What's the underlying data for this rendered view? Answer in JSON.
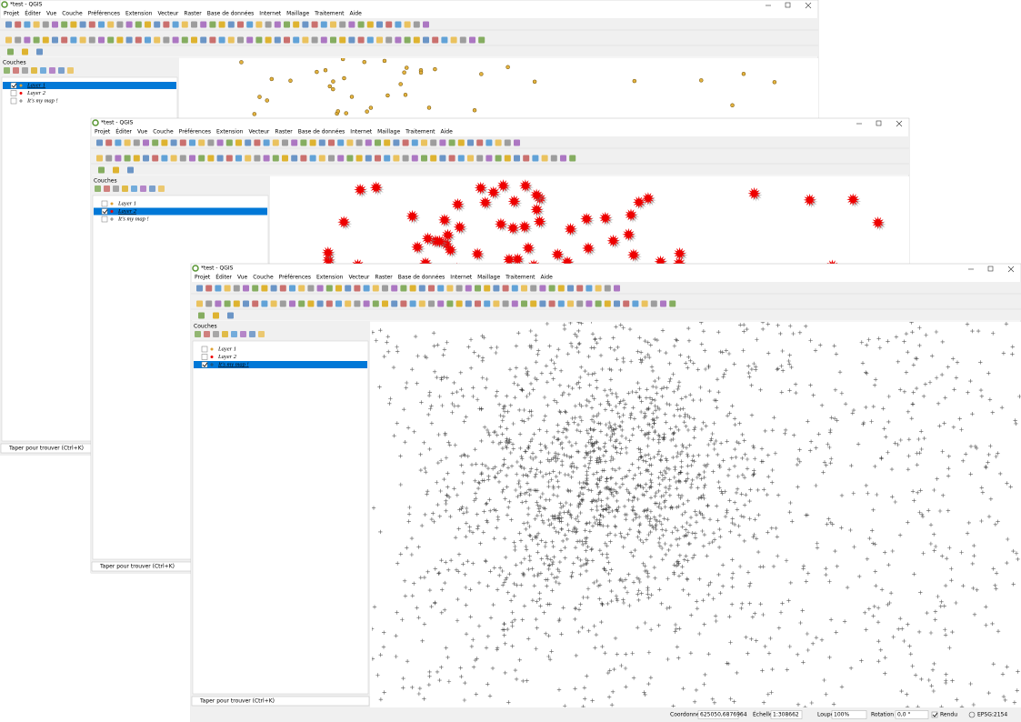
{
  "windows": [
    {
      "title": "*test - QGIS",
      "menu": [
        "Projet",
        "Éditer",
        "Vue",
        "Couche",
        "Préférences",
        "Extension",
        "Vecteur",
        "Raster",
        "Base de données",
        "Internet",
        "Maillage",
        "Traitement",
        "Aide"
      ],
      "panel_title": "Couches",
      "layers": [
        {
          "name": "Layer 1",
          "checked": true,
          "selected": true,
          "symbol": "circle"
        },
        {
          "name": "Layer 2",
          "checked": false,
          "selected": false,
          "symbol": "star"
        },
        {
          "name": "It's my map !",
          "checked": false,
          "selected": false,
          "symbol": "cross"
        }
      ],
      "search": "Taper pour trouver (Ctrl+K)"
    },
    {
      "title": "*test - QGIS",
      "menu": [
        "Projet",
        "Éditer",
        "Vue",
        "Couche",
        "Préférences",
        "Extension",
        "Vecteur",
        "Raster",
        "Base de données",
        "Internet",
        "Maillage",
        "Traitement",
        "Aide"
      ],
      "panel_title": "Couches",
      "layers": [
        {
          "name": "Layer 1",
          "checked": false,
          "selected": false,
          "symbol": "circle"
        },
        {
          "name": "Layer 2",
          "checked": true,
          "selected": true,
          "symbol": "star"
        },
        {
          "name": "It's my map !",
          "checked": false,
          "selected": false,
          "symbol": "cross"
        }
      ],
      "search": "Taper pour trouver (Ctrl+K)"
    },
    {
      "title": "*test - QGIS",
      "menu": [
        "Projet",
        "Éditer",
        "Vue",
        "Couche",
        "Préférences",
        "Extension",
        "Vecteur",
        "Raster",
        "Base de données",
        "Internet",
        "Maillage",
        "Traitement",
        "Aide"
      ],
      "panel_title": "Couches",
      "layers": [
        {
          "name": "Layer 1",
          "checked": false,
          "selected": false,
          "symbol": "circle"
        },
        {
          "name": "Layer 2",
          "checked": false,
          "selected": false,
          "symbol": "star"
        },
        {
          "name": "It's my map !",
          "checked": true,
          "selected": true,
          "symbol": "cross"
        }
      ],
      "search": "Taper pour trouver (Ctrl+K)",
      "status_bar": {
        "coordinate_label": "Coordonnée",
        "coordinate": "625050,6876964",
        "scale_label": "Échelle",
        "scale": "1:308662",
        "magnifier_label": "Loupe",
        "magnifier": "100%",
        "rotation_label": "Rotation",
        "rotation": "0,0 °",
        "render_label": "Rendu",
        "crs": "EPSG:2154"
      }
    }
  ]
}
